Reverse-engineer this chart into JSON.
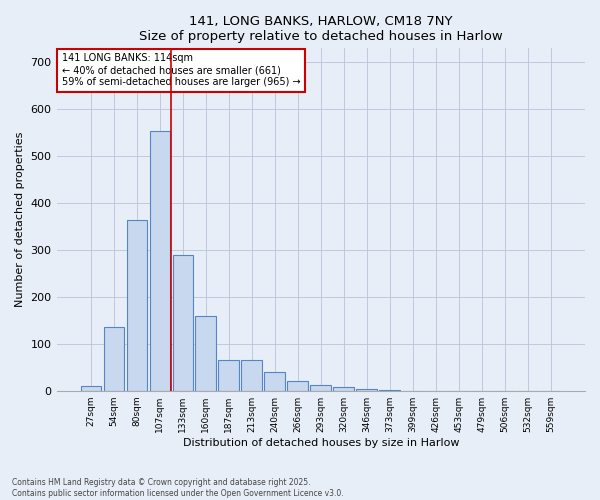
{
  "title1": "141, LONG BANKS, HARLOW, CM18 7NY",
  "title2": "Size of property relative to detached houses in Harlow",
  "xlabel": "Distribution of detached houses by size in Harlow",
  "ylabel": "Number of detached properties",
  "categories": [
    "27sqm",
    "54sqm",
    "80sqm",
    "107sqm",
    "133sqm",
    "160sqm",
    "187sqm",
    "213sqm",
    "240sqm",
    "266sqm",
    "293sqm",
    "320sqm",
    "346sqm",
    "373sqm",
    "399sqm",
    "426sqm",
    "453sqm",
    "479sqm",
    "506sqm",
    "532sqm",
    "559sqm"
  ],
  "values": [
    10,
    135,
    365,
    553,
    290,
    160,
    65,
    65,
    40,
    20,
    13,
    8,
    4,
    2,
    0,
    0,
    0,
    0,
    0,
    0,
    0
  ],
  "bar_color": "#c8d8ee",
  "bar_edge_color": "#5585c5",
  "vline_color": "#cc0000",
  "vline_pos": 3.5,
  "annotation_text": "141 LONG BANKS: 114sqm\n← 40% of detached houses are smaller (661)\n59% of semi-detached houses are larger (965) →",
  "annotation_box_color": "#ffffff",
  "annotation_box_edge": "#cc0000",
  "ylim": [
    0,
    730
  ],
  "yticks": [
    0,
    100,
    200,
    300,
    400,
    500,
    600,
    700
  ],
  "footer1": "Contains HM Land Registry data © Crown copyright and database right 2025.",
  "footer2": "Contains public sector information licensed under the Open Government Licence v3.0.",
  "bg_color": "#e8eef8",
  "plot_bg_color": "#e8eef8",
  "grid_color": "#b8c4da"
}
